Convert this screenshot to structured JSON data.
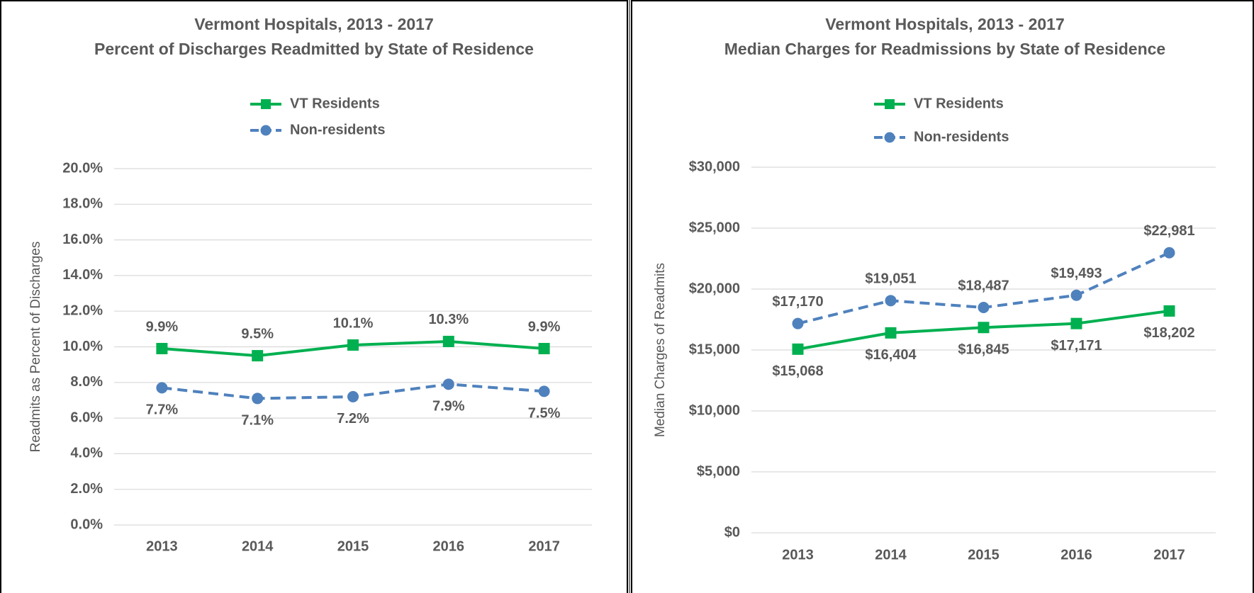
{
  "chart_data": [
    {
      "type": "line",
      "title": "Vermont Hospitals, 2013 - 2017",
      "subtitle": "Percent of Discharges Readmitted by State of Residence",
      "y_label": "Readmits as Percent of Discharges",
      "categories": [
        "2013",
        "2014",
        "2015",
        "2016",
        "2017"
      ],
      "ylim": [
        0,
        20
      ],
      "yticks": [
        {
          "value": 0,
          "label": "0.0%"
        },
        {
          "value": 2,
          "label": "2.0%"
        },
        {
          "value": 4,
          "label": "4.0%"
        },
        {
          "value": 6,
          "label": "6.0%"
        },
        {
          "value": 8,
          "label": "8.0%"
        },
        {
          "value": 10,
          "label": "10.0%"
        },
        {
          "value": 12,
          "label": "12.0%"
        },
        {
          "value": 14,
          "label": "14.0%"
        },
        {
          "value": 16,
          "label": "16.0%"
        },
        {
          "value": 18,
          "label": "18.0%"
        },
        {
          "value": 20,
          "label": "20.0%"
        }
      ],
      "grid": true,
      "legend": "top",
      "series": [
        {
          "name": "VT Residents",
          "color": "#00b050",
          "marker": "square",
          "dashed": false,
          "label_position": "above",
          "values": [
            9.9,
            9.5,
            10.1,
            10.3,
            9.9
          ],
          "value_labels": [
            "9.9%",
            "9.5%",
            "10.1%",
            "10.3%",
            "9.9%"
          ]
        },
        {
          "name": "Non-residents",
          "color": "#4f81bd",
          "marker": "circle",
          "dashed": true,
          "label_position": "below",
          "values": [
            7.7,
            7.1,
            7.2,
            7.9,
            7.5
          ],
          "value_labels": [
            "7.7%",
            "7.1%",
            "7.2%",
            "7.9%",
            "7.5%"
          ]
        }
      ]
    },
    {
      "type": "line",
      "title": "Vermont Hospitals, 2013 - 2017",
      "subtitle": "Median Charges for Readmissions by State of Residence",
      "y_label": "Median Charges of Readmits",
      "categories": [
        "2013",
        "2014",
        "2015",
        "2016",
        "2017"
      ],
      "ylim": [
        0,
        30000
      ],
      "yticks": [
        {
          "value": 0,
          "label": "$0"
        },
        {
          "value": 5000,
          "label": "$5,000"
        },
        {
          "value": 10000,
          "label": "$10,000"
        },
        {
          "value": 15000,
          "label": "$15,000"
        },
        {
          "value": 20000,
          "label": "$20,000"
        },
        {
          "value": 25000,
          "label": "$25,000"
        },
        {
          "value": 30000,
          "label": "$30,000"
        }
      ],
      "grid": true,
      "legend": "top",
      "series": [
        {
          "name": "VT Residents",
          "color": "#00b050",
          "marker": "square",
          "dashed": false,
          "label_position": "below",
          "values": [
            15068,
            16404,
            16845,
            17171,
            18202
          ],
          "value_labels": [
            "$15,068",
            "$16,404",
            "$16,845",
            "$17,171",
            "$18,202"
          ]
        },
        {
          "name": "Non-residents",
          "color": "#4f81bd",
          "marker": "circle",
          "dashed": true,
          "label_position": "above",
          "values": [
            17170,
            19051,
            18487,
            19493,
            22981
          ],
          "value_labels": [
            "$17,170",
            "$19,051",
            "$18,487",
            "$19,493",
            "$22,981"
          ]
        }
      ]
    }
  ]
}
